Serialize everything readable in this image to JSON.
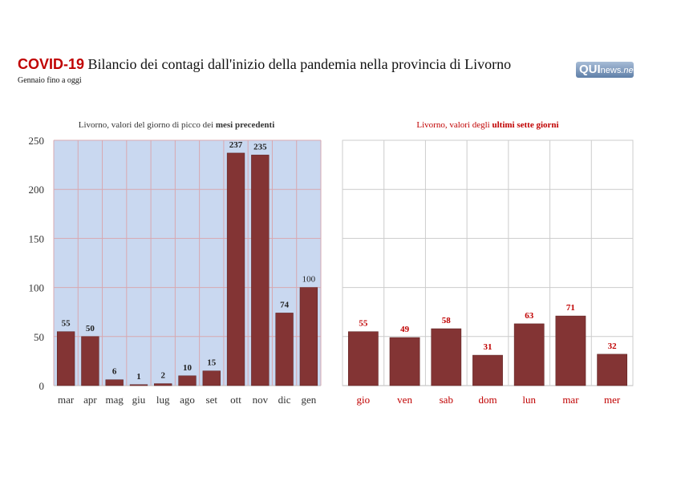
{
  "header": {
    "title_highlight": "COVID-19",
    "title_rest": " Bilancio dei contagi dall'inizio della pandemia nella provincia di Livorno",
    "subtitle": "Gennaio fino a oggi",
    "logo_text": "QUInews.net"
  },
  "colors": {
    "bar": "#833434",
    "left_bg": "#c9d8f0",
    "accent_red": "#c00000"
  },
  "chart_data": [
    {
      "type": "bar",
      "title_plain": "Livorno, valori del giorno di picco dei ",
      "title_bold": "mesi precedenti",
      "categories": [
        "mar",
        "apr",
        "mag",
        "giu",
        "lug",
        "ago",
        "set",
        "ott",
        "nov",
        "dic",
        "gen"
      ],
      "values": [
        55,
        50,
        6,
        1,
        2,
        10,
        15,
        237,
        235,
        74,
        100
      ],
      "ylim": [
        0,
        250
      ],
      "yticks": [
        0,
        50,
        100,
        150,
        200,
        250
      ],
      "grid": true
    },
    {
      "type": "bar",
      "title_plain": "Livorno, valori degli ",
      "title_bold": "ultimi sette giorni",
      "categories": [
        "gio",
        "ven",
        "sab",
        "dom",
        "lun",
        "mar",
        "mer"
      ],
      "values": [
        55,
        49,
        58,
        31,
        63,
        71,
        32
      ],
      "ylim": [
        0,
        250
      ],
      "grid": true
    }
  ]
}
